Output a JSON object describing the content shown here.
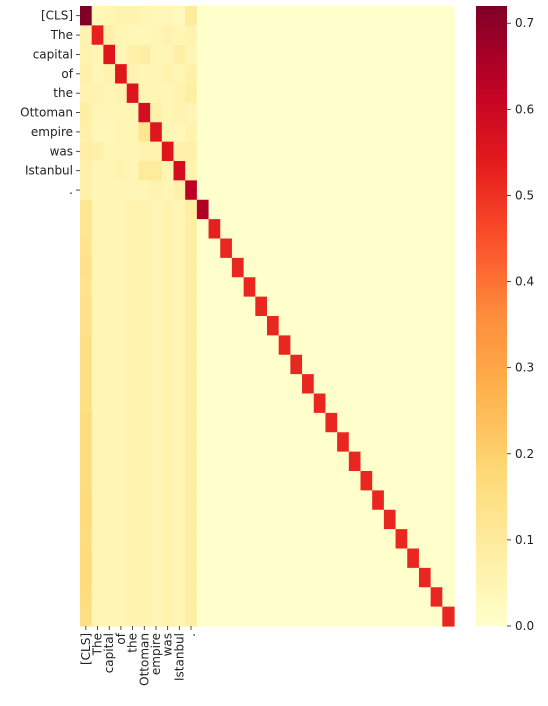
{
  "chart_data": {
    "type": "heatmap",
    "title": "",
    "xlabel": "",
    "ylabel": "",
    "tokens": [
      "[CLS]",
      "The",
      "capital",
      "of",
      "the",
      "Ottoman",
      "empire",
      "was",
      "Istanbul",
      "."
    ],
    "n_rows": 32,
    "n_cols": 32,
    "row_tick_labels": [
      "[CLS]",
      "The",
      "capital",
      "of",
      "the",
      "Ottoman",
      "empire",
      "was",
      "Istanbul",
      "."
    ],
    "col_tick_labels": [
      "[CLS]",
      "The",
      "capital",
      "of",
      "the",
      "Ottoman",
      "empire",
      "was",
      "Istanbul",
      "."
    ],
    "diagonal": [
      0.72,
      0.53,
      0.55,
      0.55,
      0.56,
      0.58,
      0.55,
      0.55,
      0.58,
      0.63,
      0.65,
      0.53,
      0.52,
      0.52,
      0.52,
      0.52,
      0.52,
      0.52,
      0.52,
      0.52,
      0.52,
      0.52,
      0.52,
      0.52,
      0.52,
      0.52,
      0.52,
      0.52,
      0.52,
      0.52,
      0.52,
      0.52
    ],
    "first_col": [
      0.72,
      0.06,
      0.06,
      0.07,
      0.06,
      0.08,
      0.07,
      0.08,
      0.07,
      0.07,
      0.12,
      0.12,
      0.13,
      0.14,
      0.13,
      0.14,
      0.14,
      0.15,
      0.15,
      0.15,
      0.15,
      0.16,
      0.16,
      0.16,
      0.16,
      0.17,
      0.17,
      0.16,
      0.17,
      0.17,
      0.16,
      0.15
    ],
    "token_block": [
      [
        0.72,
        0.04,
        0.05,
        0.06,
        0.06,
        0.05,
        0.04,
        0.04,
        0.03,
        0.1
      ],
      [
        0.06,
        0.53,
        0.07,
        0.05,
        0.04,
        0.04,
        0.05,
        0.06,
        0.05,
        0.06
      ],
      [
        0.06,
        0.05,
        0.55,
        0.05,
        0.07,
        0.08,
        0.05,
        0.05,
        0.08,
        0.05
      ],
      [
        0.07,
        0.05,
        0.06,
        0.55,
        0.06,
        0.05,
        0.05,
        0.06,
        0.05,
        0.07
      ],
      [
        0.06,
        0.06,
        0.05,
        0.06,
        0.56,
        0.05,
        0.05,
        0.05,
        0.06,
        0.08
      ],
      [
        0.08,
        0.05,
        0.05,
        0.05,
        0.05,
        0.58,
        0.07,
        0.05,
        0.06,
        0.05
      ],
      [
        0.07,
        0.04,
        0.04,
        0.05,
        0.05,
        0.12,
        0.55,
        0.05,
        0.04,
        0.06
      ],
      [
        0.08,
        0.07,
        0.05,
        0.05,
        0.05,
        0.06,
        0.06,
        0.55,
        0.07,
        0.07
      ],
      [
        0.07,
        0.05,
        0.05,
        0.06,
        0.05,
        0.1,
        0.1,
        0.05,
        0.58,
        0.06
      ],
      [
        0.07,
        0.05,
        0.05,
        0.05,
        0.05,
        0.05,
        0.06,
        0.05,
        0.07,
        0.63
      ]
    ],
    "padding_token_col_values": [
      0.05,
      0.05,
      0.05,
      0.05,
      0.06,
      0.06,
      0.05,
      0.06,
      0.05,
      0.08
    ],
    "background_value": 0.0,
    "colormap": "YlOrRd",
    "colorbar": {
      "min": 0.0,
      "max": 0.72,
      "ticks": [
        "0.0",
        "0.1",
        "0.2",
        "0.3",
        "0.4",
        "0.5",
        "0.6",
        "0.7"
      ]
    }
  }
}
